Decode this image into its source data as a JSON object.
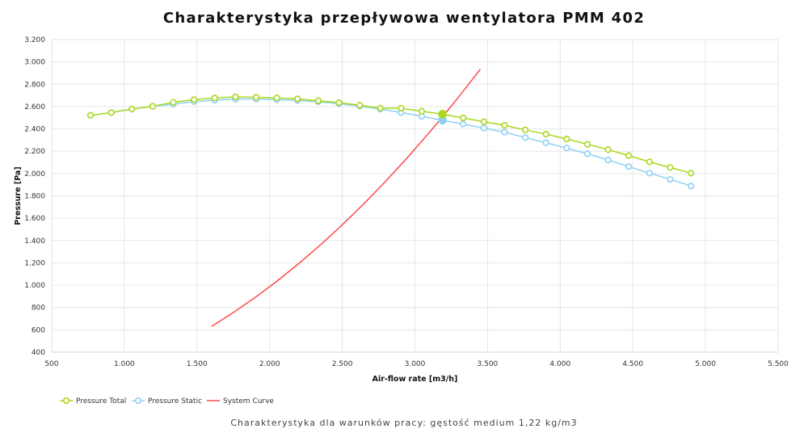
{
  "chart_data": {
    "type": "line",
    "title": "Charakterystyka przepływowa wentylatora PMM 402",
    "subtitle": "Charakterystyka dla warunków pracy: gęstość medium 1,22 kg/m3",
    "xlabel": "Air-flow rate [m3/h]",
    "ylabel": "Pressure [Pa]",
    "xlim": [
      500,
      5500
    ],
    "ylim": [
      400,
      3200
    ],
    "xticks": [
      "500",
      "1.000",
      "1.500",
      "2.000",
      "2.500",
      "3.000",
      "3.500",
      "4.000",
      "4.500",
      "5.000",
      "5.500"
    ],
    "yticks": [
      "400",
      "600",
      "800",
      "1.000",
      "1.200",
      "1.400",
      "1.600",
      "1.800",
      "2.000",
      "2.200",
      "2.400",
      "2.600",
      "2.800",
      "3.000",
      "3.200"
    ],
    "grid": true,
    "legend_position": "bottom-left",
    "x": [
      767,
      910,
      1052,
      1195,
      1337,
      1480,
      1622,
      1765,
      1907,
      2050,
      2192,
      2335,
      2477,
      2620,
      2762,
      2905,
      3047,
      3190,
      3332,
      3475,
      3617,
      3760,
      3902,
      4045,
      4187,
      4330,
      4472,
      4615,
      4757,
      4900
    ],
    "operating_point_index": 17,
    "series": [
      {
        "name": "Pressure Total",
        "color": "#a9d81e",
        "values": [
          2522,
          2546,
          2578,
          2602,
          2638,
          2662,
          2677,
          2686,
          2684,
          2677,
          2669,
          2652,
          2636,
          2612,
          2585,
          2585,
          2558,
          2532,
          2498,
          2464,
          2432,
          2391,
          2353,
          2310,
          2262,
          2214,
          2161,
          2105,
          2054,
          2004
        ]
      },
      {
        "name": "Pressure Static",
        "color": "#8fd0f5",
        "values": [
          2522,
          2546,
          2578,
          2602,
          2621,
          2645,
          2657,
          2667,
          2667,
          2662,
          2655,
          2643,
          2626,
          2604,
          2578,
          2547,
          2513,
          2477,
          2443,
          2407,
          2371,
          2322,
          2276,
          2228,
          2177,
          2122,
          2062,
          2004,
          1948,
          1888
        ]
      },
      {
        "name": "System Curve",
        "color": "#ff4b4b",
        "points": [
          [
            1600,
            631
          ],
          [
            1750,
            755
          ],
          [
            1900,
            890
          ],
          [
            2050,
            1036
          ],
          [
            2200,
            1193
          ],
          [
            2350,
            1361
          ],
          [
            2500,
            1541
          ],
          [
            2650,
            1731
          ],
          [
            2800,
            1933
          ],
          [
            2950,
            2145
          ],
          [
            3100,
            2369
          ],
          [
            3190,
            2508
          ],
          [
            3300,
            2684
          ],
          [
            3450,
            2934
          ]
        ]
      }
    ]
  }
}
